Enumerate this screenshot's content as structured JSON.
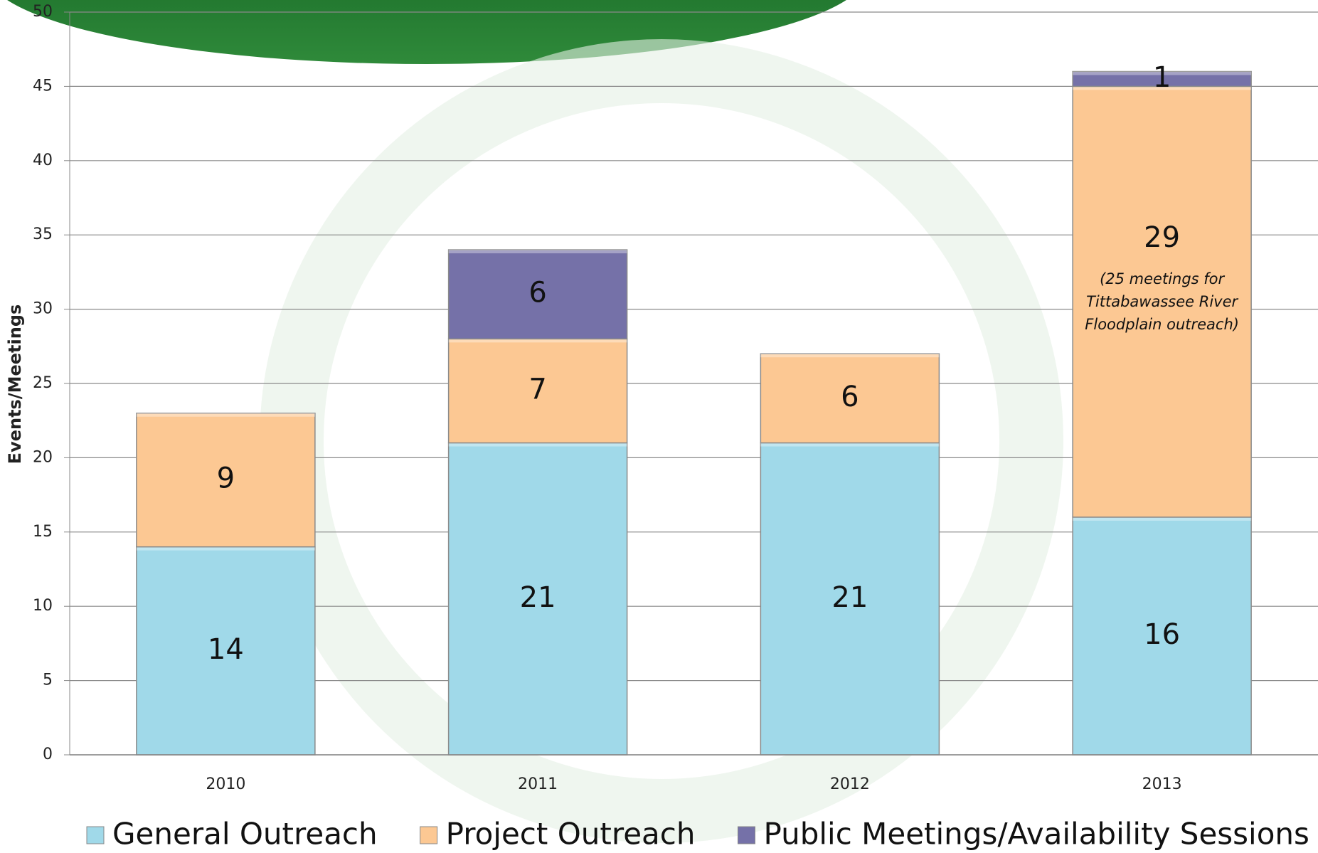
{
  "chart_data": {
    "type": "stacked_bar",
    "categories": [
      "2010",
      "2011",
      "2012",
      "2013"
    ],
    "series": [
      {
        "name": "General Outreach",
        "color": "#a0d9e9",
        "values": [
          14,
          21,
          21,
          16
        ]
      },
      {
        "name": "Project Outreach",
        "color": "#fcc893",
        "values": [
          9,
          7,
          6,
          29
        ]
      },
      {
        "name": "Public Meetings/Availability Sessions",
        "color": "#7571a8",
        "values": [
          null,
          6,
          null,
          1
        ]
      }
    ],
    "ylabel": "Events/Meetings",
    "annotation": "(25 meetings for Tittabawassee River Floodplain outreach)",
    "ylim": [
      0,
      50
    ],
    "yticks": [
      0,
      5,
      10,
      15,
      20,
      25,
      30,
      35,
      40,
      45,
      50
    ],
    "grid": true
  }
}
